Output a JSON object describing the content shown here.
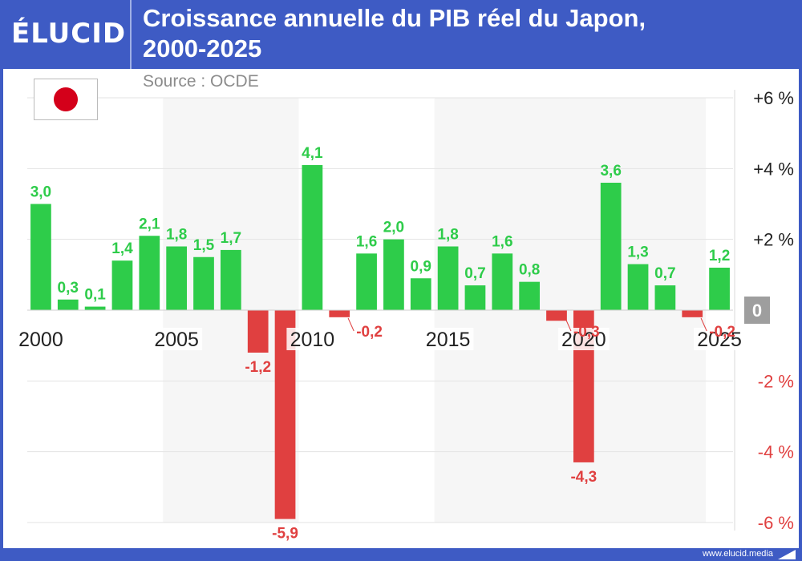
{
  "header": {
    "brand": "ÉLUCID",
    "title_line1": "Croissance annuelle du PIB réel du Japon,",
    "title_line2": "2000-2025"
  },
  "source": "Source : OCDE",
  "footer": {
    "url": "www.elucid.media"
  },
  "flag": {
    "icon": "japan-flag-icon",
    "color": "#d4001a"
  },
  "colors": {
    "positive": "#2ecc4a",
    "negative": "#e04040",
    "accent": "#3e5bc4",
    "positive_label": "#2ecc4a",
    "negative_label": "#e04040"
  },
  "chart_data": {
    "type": "bar",
    "title": "Croissance annuelle du PIB réel du Japon, 2000-2025",
    "categories": [
      2000,
      2001,
      2002,
      2003,
      2004,
      2005,
      2006,
      2007,
      2008,
      2009,
      2010,
      2011,
      2012,
      2013,
      2014,
      2015,
      2016,
      2017,
      2018,
      2019,
      2020,
      2021,
      2022,
      2023,
      2024,
      2025
    ],
    "values": [
      3.0,
      0.3,
      0.1,
      1.4,
      2.1,
      1.8,
      1.5,
      1.7,
      -1.2,
      -5.9,
      4.1,
      -0.2,
      1.6,
      2.0,
      0.9,
      1.8,
      0.7,
      1.6,
      0.8,
      -0.3,
      -4.3,
      3.6,
      1.3,
      0.7,
      -0.2,
      1.2
    ],
    "value_labels": [
      "3,0",
      "0,3",
      "0,1",
      "1,4",
      "2,1",
      "1,8",
      "1,5",
      "1,7",
      "-1,2",
      "-5,9",
      "4,1",
      "-0,2",
      "1,6",
      "2,0",
      "0,9",
      "1,8",
      "0,7",
      "1,6",
      "0,8",
      "-0,3",
      "-4,3",
      "3,6",
      "1,3",
      "0,7",
      "-0,2",
      "1,2"
    ],
    "x_tick_labels": [
      {
        "year": 2000,
        "label": "2000"
      },
      {
        "year": 2005,
        "label": "2005"
      },
      {
        "year": 2010,
        "label": "2010"
      },
      {
        "year": 2015,
        "label": "2015"
      },
      {
        "year": 2020,
        "label": "2020"
      },
      {
        "year": 2025,
        "label": "2025"
      }
    ],
    "y_ticks": [
      {
        "value": 6,
        "label": "+6 %"
      },
      {
        "value": 4,
        "label": "+4 %"
      },
      {
        "value": 2,
        "label": "+2 %"
      },
      {
        "value": 0,
        "label": "0"
      },
      {
        "value": -2,
        "label": "-2 %"
      },
      {
        "value": -4,
        "label": "-4 %"
      },
      {
        "value": -6,
        "label": "-6 %"
      }
    ],
    "ylim": [
      -6,
      6
    ],
    "grid": true,
    "y_axis_position": "right",
    "shaded_periods": [
      [
        2005,
        2009
      ],
      [
        2015,
        2019
      ],
      [
        2020,
        2024
      ]
    ]
  }
}
